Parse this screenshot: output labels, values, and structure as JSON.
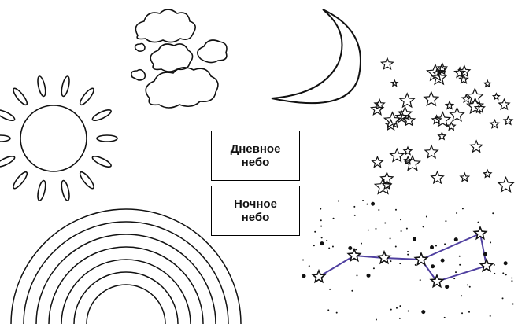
{
  "labels": [
    {
      "lines": [
        "Дневное",
        "небо"
      ]
    },
    {
      "lines": [
        "Ночное",
        "небо"
      ]
    }
  ]
}
